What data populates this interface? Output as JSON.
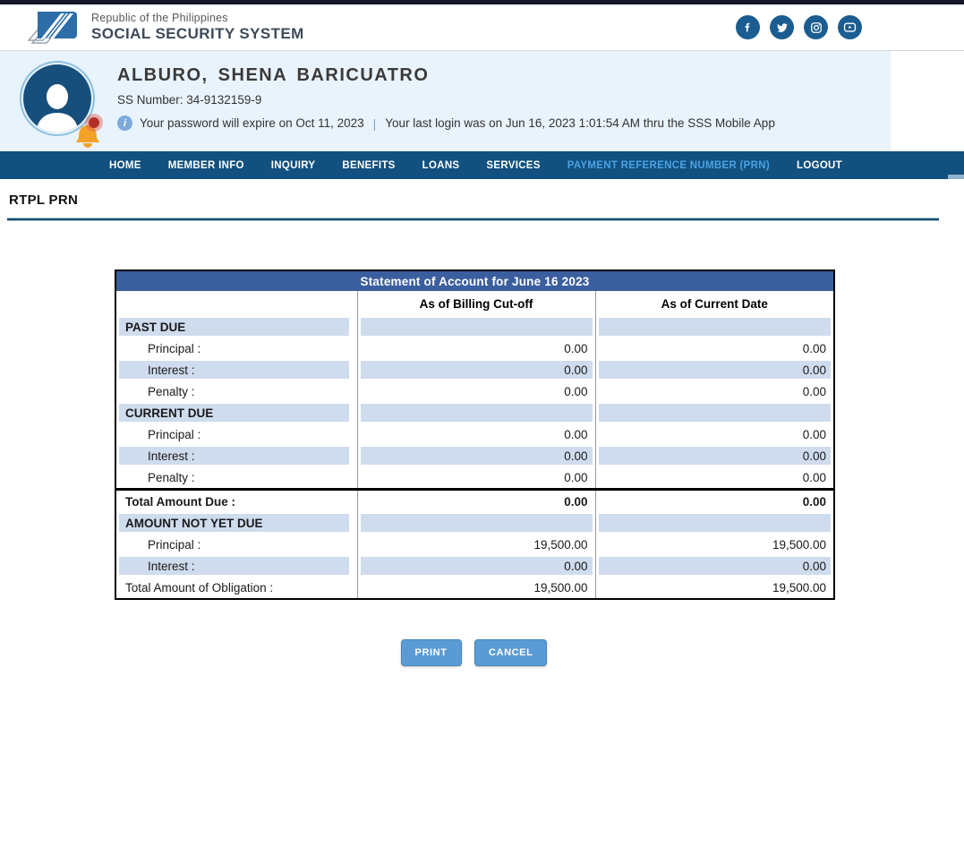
{
  "header": {
    "agency_line1": "Republic of the Philippines",
    "agency_line2": "SOCIAL SECURITY SYSTEM",
    "social_icons": [
      "facebook-icon",
      "twitter-icon",
      "instagram-icon",
      "youtube-icon"
    ]
  },
  "user": {
    "name": "ALBURO, SHENA BARICUATRO",
    "ss_number": "SS Number: 34-9132159-9",
    "info_icon": "i",
    "password_notice": "Your password will expire on Oct 11, 2023",
    "separator": "|",
    "last_login": "Your last login was on Jun 16, 2023 1:01:54 AM thru the SSS Mobile App"
  },
  "nav": {
    "items": [
      {
        "label": "HOME",
        "active": false
      },
      {
        "label": "MEMBER INFO",
        "active": false
      },
      {
        "label": "INQUIRY",
        "active": false
      },
      {
        "label": "BENEFITS",
        "active": false
      },
      {
        "label": "LOANS",
        "active": false
      },
      {
        "label": "SERVICES",
        "active": false
      },
      {
        "label": "PAYMENT REFERENCE NUMBER (PRN)",
        "active": true
      },
      {
        "label": "LOGOUT",
        "active": false
      }
    ]
  },
  "page": {
    "title": "RTPL PRN"
  },
  "soa_table": {
    "title": "Statement of Account for June 16 2023",
    "columns": [
      "",
      "As of Billing Cut-off",
      "As of Current Date"
    ],
    "rows": [
      {
        "label": "PAST DUE",
        "billing": "",
        "current": "",
        "shaded": true,
        "bold": true,
        "indent": false,
        "thick_top": false
      },
      {
        "label": "Principal :",
        "billing": "0.00",
        "current": "0.00",
        "shaded": false,
        "bold": false,
        "indent": true,
        "thick_top": false
      },
      {
        "label": "Interest :",
        "billing": "0.00",
        "current": "0.00",
        "shaded": true,
        "bold": false,
        "indent": true,
        "thick_top": false
      },
      {
        "label": "Penalty :",
        "billing": "0.00",
        "current": "0.00",
        "shaded": false,
        "bold": false,
        "indent": true,
        "thick_top": false
      },
      {
        "label": "CURRENT DUE",
        "billing": "",
        "current": "",
        "shaded": true,
        "bold": true,
        "indent": false,
        "thick_top": false
      },
      {
        "label": "Principal :",
        "billing": "0.00",
        "current": "0.00",
        "shaded": false,
        "bold": false,
        "indent": true,
        "thick_top": false
      },
      {
        "label": "Interest :",
        "billing": "0.00",
        "current": "0.00",
        "shaded": true,
        "bold": false,
        "indent": true,
        "thick_top": false
      },
      {
        "label": "Penalty :",
        "billing": "0.00",
        "current": "0.00",
        "shaded": false,
        "bold": false,
        "indent": true,
        "thick_top": false
      },
      {
        "label": "Total Amount Due :",
        "billing": "0.00",
        "current": "0.00",
        "shaded": false,
        "bold": true,
        "indent": false,
        "thick_top": true
      },
      {
        "label": "AMOUNT NOT YET DUE",
        "billing": "",
        "current": "",
        "shaded": true,
        "bold": true,
        "indent": false,
        "thick_top": false
      },
      {
        "label": "Principal :",
        "billing": "19,500.00",
        "current": "19,500.00",
        "shaded": false,
        "bold": false,
        "indent": true,
        "thick_top": false
      },
      {
        "label": "Interest :",
        "billing": "0.00",
        "current": "0.00",
        "shaded": true,
        "bold": false,
        "indent": true,
        "thick_top": false
      },
      {
        "label": "Total Amount of Obligation :",
        "billing": "19,500.00",
        "current": "19,500.00",
        "shaded": false,
        "bold": false,
        "indent": false,
        "thick_top": false
      }
    ]
  },
  "buttons": {
    "print": "PRINT",
    "cancel": "CANCEL"
  },
  "colors": {
    "nav_bg": "#11507f",
    "nav_active": "#4ba3e3",
    "table_title_bg": "#3a5e9e",
    "shaded_row": "#cfdcee",
    "button_bg": "#5b9bd5",
    "userband_bg": "#e9f3fc",
    "social_circle": "#1b5d90",
    "avatar_bg": "#174f7c"
  }
}
